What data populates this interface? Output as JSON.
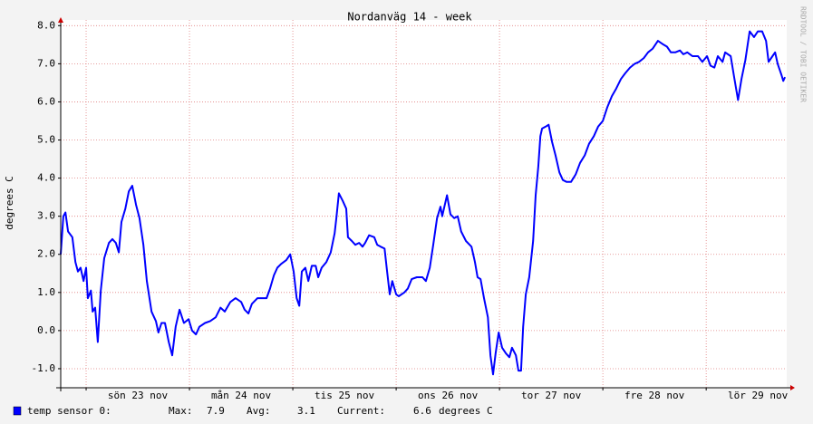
{
  "chart_data": {
    "type": "line",
    "title": "Nordanväg 14 - week",
    "y_label": "degrees C",
    "watermark": "RRDTOOL / TOBI OETIKER",
    "x": [
      -5.9,
      -5.3,
      -4.8,
      -4.2,
      -3.2,
      -2.5,
      -1.9,
      -1.3,
      -0.6,
      0,
      0.4,
      1.1,
      1.5,
      2.1,
      2.7,
      3.4,
      4.2,
      5.3,
      6.1,
      6.9,
      7.6,
      8.2,
      9.1,
      9.9,
      10.7,
      11.6,
      12.4,
      13.3,
      14.1,
      15.2,
      16.2,
      16.8,
      17.5,
      18.3,
      19.2,
      20.0,
      20.8,
      21.7,
      22.7,
      23.8,
      24.6,
      25.5,
      26.3,
      27.6,
      28.8,
      30.1,
      31.2,
      32.2,
      33.5,
      34.7,
      36.0,
      36.8,
      37.7,
      38.5,
      39.8,
      41.0,
      41.9,
      42.7,
      43.6,
      44.4,
      45.3,
      46.5,
      47.4,
      48.2,
      48.9,
      49.5,
      50.1,
      50.9,
      51.6,
      52.4,
      53.3,
      53.9,
      54.7,
      55.8,
      56.8,
      57.7,
      58.1,
      58.7,
      59.6,
      60.4,
      60.8,
      61.7,
      62.5,
      63.4,
      64.2,
      64.8,
      65.7,
      66.9,
      67.6,
      68.4,
      69.3,
      69.9,
      70.5,
      71.1,
      72.0,
      72.6,
      73.9,
      74.7,
      75.6,
      76.8,
      78.1,
      78.9,
      79.8,
      80.6,
      81.5,
      82.3,
      82.7,
      83.1,
      83.8,
      84.6,
      85.5,
      86.3,
      87.1,
      88.2,
      89.5,
      90.3,
      90.9,
      91.6,
      92.4,
      93.3,
      93.9,
      94.5,
      95.1,
      95.8,
      96.6,
      97.5,
      98.3,
      98.9,
      99.8,
      100.4,
      101.0,
      101.5,
      102.1,
      102.9,
      103.8,
      104.4,
      105.0,
      105.5,
      105.9,
      106.7,
      107.4,
      108.2,
      109.0,
      109.9,
      110.7,
      111.6,
      112.6,
      113.7,
      114.7,
      115.8,
      116.8,
      117.9,
      118.9,
      120.0,
      121.0,
      122.1,
      123.1,
      124.2,
      125.2,
      126.3,
      127.4,
      128.4,
      129.5,
      130.5,
      131.6,
      132.8,
      134.1,
      134.9,
      135.8,
      136.8,
      137.9,
      138.7,
      139.6,
      140.8,
      142.1,
      143.1,
      144.2,
      145.0,
      145.9,
      146.7,
      147.8,
      148.4,
      149.7,
      150.5,
      151.4,
      152.2,
      153.1,
      154.1,
      155.1,
      156.0,
      157.0,
      157.9,
      158.5,
      159.4,
      160.0,
      160.6,
      161.5,
      161.9,
      162.3
    ],
    "series": [
      {
        "name": "temp sensor 0:",
        "color": "#0000ff",
        "values": [
          2.0,
          3.0,
          3.1,
          2.6,
          2.45,
          1.8,
          1.55,
          1.65,
          1.3,
          1.65,
          0.85,
          1.05,
          0.5,
          0.6,
          -0.3,
          1.05,
          1.9,
          2.3,
          2.4,
          2.3,
          2.05,
          2.85,
          3.2,
          3.65,
          3.8,
          3.3,
          2.95,
          2.25,
          1.3,
          0.5,
          0.25,
          -0.05,
          0.2,
          0.2,
          -0.3,
          -0.65,
          0.1,
          0.55,
          0.2,
          0.3,
          0,
          -0.1,
          0.1,
          0.2,
          0.25,
          0.35,
          0.6,
          0.5,
          0.75,
          0.85,
          0.75,
          0.55,
          0.45,
          0.7,
          0.85,
          0.85,
          0.85,
          1.1,
          1.45,
          1.65,
          1.75,
          1.85,
          2.0,
          1.55,
          0.85,
          0.65,
          1.55,
          1.65,
          1.3,
          1.7,
          1.7,
          1.4,
          1.65,
          1.8,
          2.05,
          2.55,
          2.95,
          3.6,
          3.4,
          3.2,
          2.45,
          2.35,
          2.25,
          2.3,
          2.2,
          2.3,
          2.5,
          2.45,
          2.25,
          2.2,
          2.15,
          1.55,
          0.95,
          1.3,
          0.95,
          0.9,
          1.0,
          1.1,
          1.35,
          1.4,
          1.4,
          1.3,
          1.65,
          2.25,
          2.95,
          3.25,
          3.0,
          3.2,
          3.55,
          3.05,
          2.95,
          3.0,
          2.6,
          2.35,
          2.2,
          1.8,
          1.4,
          1.35,
          0.85,
          0.35,
          -0.65,
          -1.15,
          -0.6,
          -0.05,
          -0.45,
          -0.6,
          -0.7,
          -0.45,
          -0.65,
          -1.05,
          -1.05,
          0.1,
          0.95,
          1.4,
          2.35,
          3.55,
          4.3,
          5.1,
          5.3,
          5.35,
          5.4,
          4.95,
          4.6,
          4.15,
          3.95,
          3.9,
          3.9,
          4.1,
          4.4,
          4.6,
          4.9,
          5.1,
          5.35,
          5.5,
          5.85,
          6.15,
          6.35,
          6.6,
          6.75,
          6.9,
          7.0,
          7.05,
          7.15,
          7.3,
          7.4,
          7.6,
          7.5,
          7.45,
          7.3,
          7.3,
          7.35,
          7.25,
          7.3,
          7.2,
          7.2,
          7.05,
          7.2,
          6.95,
          6.9,
          7.2,
          7.05,
          7.3,
          7.2,
          6.65,
          6.05,
          6.6,
          7.1,
          7.85,
          7.7,
          7.85,
          7.85,
          7.6,
          7.05,
          7.2,
          7.3,
          7.0,
          6.7,
          6.55,
          6.65
        ]
      }
    ],
    "xlim": [
      -5.9,
      162.7
    ],
    "ylim": [
      -1.5,
      8.15
    ],
    "yticks": [
      {
        "value": -1,
        "label": "-1.0"
      },
      {
        "value": 0,
        "label": "0.0"
      },
      {
        "value": 1,
        "label": "1.0"
      },
      {
        "value": 2,
        "label": "2.0"
      },
      {
        "value": 3,
        "label": "3.0"
      },
      {
        "value": 4,
        "label": "4.0"
      },
      {
        "value": 5,
        "label": "5.0"
      },
      {
        "value": 6,
        "label": "6.0"
      },
      {
        "value": 7,
        "label": "7.0"
      },
      {
        "value": 8,
        "label": "8.0"
      }
    ],
    "xticks": [
      {
        "value": 12,
        "label": "sön 23 nov"
      },
      {
        "value": 36,
        "label": "mån 24 nov"
      },
      {
        "value": 60,
        "label": "tis 25 nov"
      },
      {
        "value": 84,
        "label": "ons 26 nov"
      },
      {
        "value": 108,
        "label": "tor 27 nov"
      },
      {
        "value": 132,
        "label": "fre 28 nov"
      },
      {
        "value": 156,
        "label": "lör 29 nov"
      }
    ],
    "x_major_grid": [
      0,
      24,
      48,
      72,
      96,
      120,
      144
    ],
    "grid": true,
    "stats": [
      {
        "label": "Max:",
        "value": 7.9
      },
      {
        "label": "Avg:",
        "value": 3.1
      },
      {
        "label": "Current:",
        "value": 6.6
      }
    ],
    "unit": "degrees C"
  }
}
